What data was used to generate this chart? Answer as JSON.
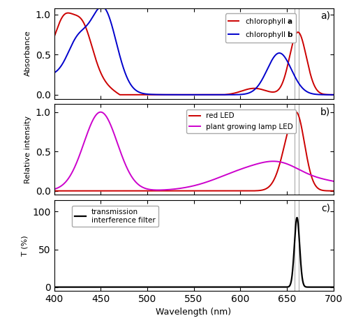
{
  "xlim": [
    400,
    700
  ],
  "vline_x": 658,
  "vline2_x": 663,
  "panel_a": {
    "ylabel": "Absorbance",
    "yticks": [
      0.0,
      0.5,
      1.0
    ],
    "ylim": [
      -0.05,
      1.08
    ],
    "chl_a_color": "#cc0000",
    "chl_b_color": "#0000cc"
  },
  "panel_b": {
    "ylabel": "Relative intensity",
    "yticks": [
      0.0,
      0.5,
      1.0
    ],
    "ylim": [
      -0.05,
      1.1
    ],
    "red_led_color": "#cc0000",
    "plant_led_color": "#cc00cc"
  },
  "panel_c": {
    "ylabel": "T (%)",
    "xlabel": "Wavelength (nm)",
    "yticks": [
      0,
      50,
      100
    ],
    "ylim": [
      -5,
      115
    ],
    "filter_color": "#000000"
  },
  "panel_labels": [
    "a)",
    "b)",
    "c)"
  ],
  "vline_color": "#aaaaaa",
  "vline_lw": 0.8,
  "xticks": [
    400,
    450,
    500,
    550,
    600,
    650,
    700
  ]
}
